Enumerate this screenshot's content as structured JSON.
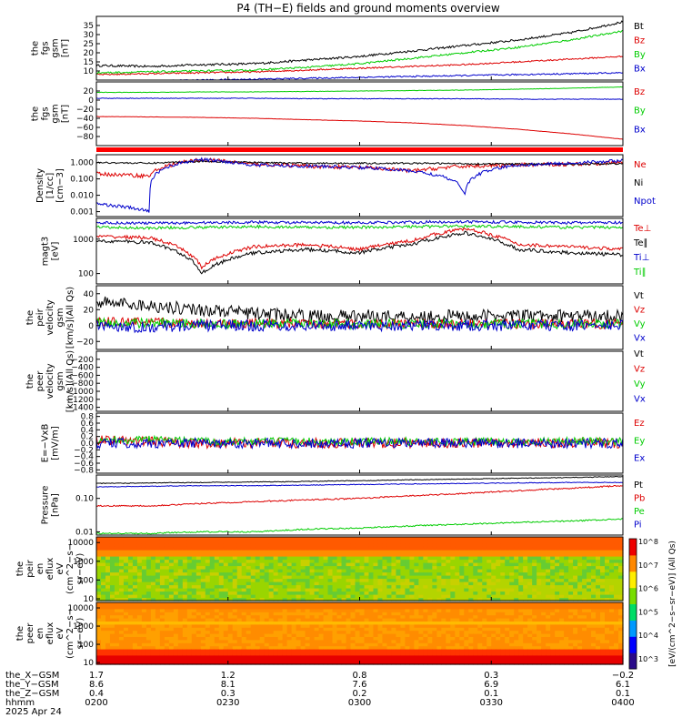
{
  "chart_data": {
    "type": "line",
    "title": "P4 (TH−E) fields and ground moments overview",
    "x_ticks": [
      "0200",
      "0230",
      "0300",
      "0330",
      "0400"
    ],
    "orbit": {
      "rows": [
        {
          "label": "the_X−GSM",
          "values": [
            "1.7",
            "1.2",
            "0.8",
            "0.3",
            "−0.2"
          ]
        },
        {
          "label": "the_Y−GSM",
          "values": [
            "8.6",
            "8.1",
            "7.6",
            "6.9",
            "6.1"
          ]
        },
        {
          "label": "the_Z−GSM",
          "values": [
            "0.4",
            "0.3",
            "0.2",
            "0.1",
            "0.1"
          ]
        },
        {
          "label": "hhmm",
          "values": []
        },
        {
          "label": "2025 Apr 24",
          "values": []
        }
      ]
    },
    "colorbar": {
      "label": "[eV/(cm^2−s−sr−eV)] (All Qs)",
      "ticks": [
        "10^8",
        "10^7",
        "10^6",
        "10^5",
        "10^4",
        "10^3"
      ]
    },
    "panels": [
      {
        "id": "bt",
        "ylabel": [
          "the",
          "fgs",
          "gsm",
          "[nT]"
        ],
        "scale": "linear",
        "ylim": [
          5,
          40
        ],
        "ticks": [
          "35",
          "30",
          "25",
          "20",
          "15",
          "10"
        ],
        "tick_values": [
          35,
          30,
          25,
          20,
          15,
          10
        ],
        "series": [
          {
            "name": "Bt",
            "color": "#000000",
            "values": [
              13,
              12.5,
              13.5,
              14,
              16,
              18,
              21,
              24,
              27,
              31,
              37
            ],
            "noise": 0.6
          },
          {
            "name": "Bz",
            "color": "#dd0000",
            "values": [
              8,
              8.5,
              9,
              9.5,
              10.5,
              11.5,
              12.5,
              13.5,
              15,
              16.5,
              18
            ],
            "noise": 0.4
          },
          {
            "name": "By",
            "color": "#00cc00",
            "values": [
              9,
              9.5,
              10,
              10.5,
              12,
              14,
              17,
              20,
              23,
              27,
              32
            ],
            "noise": 0.5
          },
          {
            "name": "Bx",
            "color": "#0000cc",
            "values": [
              4,
              4.5,
              5,
              5.5,
              6,
              6.5,
              7,
              7.5,
              8,
              8.5,
              9
            ],
            "noise": 0.4
          }
        ]
      },
      {
        "id": "b_gsm",
        "ylabel": [
          "the",
          "fgs",
          "gsm",
          "[nT]"
        ],
        "scale": "linear",
        "ylim": [
          -100,
          40
        ],
        "ticks": [
          "20",
          "0",
          "−20",
          "−40",
          "−60",
          "−80"
        ],
        "tick_values": [
          20,
          0,
          -20,
          -40,
          -60,
          -80
        ],
        "series": [
          {
            "name": "Bz",
            "color": "#dd0000",
            "values": [
              -36,
              -37,
              -38,
              -40,
              -43,
              -46,
              -50,
              -56,
              -64,
              -74,
              -86
            ],
            "noise": 0.3
          },
          {
            "name": "By",
            "color": "#00cc00",
            "values": [
              17,
              17,
              18,
              18,
              19,
              20,
              21,
              22,
              24,
              26,
              29
            ],
            "noise": 0.4
          },
          {
            "name": "Bx",
            "color": "#0000cc",
            "values": [
              4,
              4,
              4,
              4,
              3,
              3,
              3,
              3,
              2,
              2,
              2
            ],
            "noise": 0.6
          }
        ]
      },
      {
        "id": "density",
        "ylabel": [
          "Density",
          "[1/cc]",
          "[cm−3]"
        ],
        "scale": "log",
        "ylim": [
          0.0005,
          3
        ],
        "ticks": [
          "1.000",
          "0.100",
          "0.010",
          "0.001"
        ],
        "tick_values": [
          1,
          0.1,
          0.01,
          0.001
        ],
        "series": [
          {
            "name": "Ne",
            "color": "#dd0000",
            "values": [
              0.2,
              0.15,
              1.5,
              0.8,
              0.6,
              0.5,
              0.3,
              0.6,
              0.7,
              0.8,
              1.0
            ],
            "noise": 0.12
          },
          {
            "name": "Ni",
            "color": "#000000",
            "values": [
              1,
              0.9,
              1.2,
              1.0,
              0.9,
              0.9,
              0.9,
              0.85,
              0.8,
              0.8,
              0.85
            ],
            "noise": 0.05
          },
          {
            "name": "Npot",
            "color": "#0000cc",
            "values": [
              0.003,
              0.001,
              1.5,
              0.7,
              0.6,
              0.5,
              0.3,
              0.01,
              0.7,
              0.9,
              1.3
            ],
            "noise": 0.1
          }
        ]
      },
      {
        "id": "temp",
        "ylabel": [
          "magt3",
          "[eV]"
        ],
        "scale": "log",
        "ylim": [
          50,
          4000
        ],
        "ticks": [
          "1000",
          "100"
        ],
        "tick_values": [
          1000,
          100
        ],
        "series": [
          {
            "name": "Te⊥",
            "color": "#dd0000",
            "values": [
              1200,
              1100,
              150,
              600,
              700,
              500,
              900,
              2000,
              700,
              600,
              500
            ],
            "noise": 0.05
          },
          {
            "name": "Te∥",
            "color": "#000000",
            "values": [
              900,
              800,
              100,
              400,
              500,
              400,
              700,
              1500,
              500,
              400,
              350
            ],
            "noise": 0.05
          },
          {
            "name": "Ti⊥",
            "color": "#0000cc",
            "values": [
              3000,
              2900,
              3000,
              3100,
              3000,
              3000,
              3100,
              3200,
              3100,
              3000,
              3000
            ],
            "noise": 0.04
          },
          {
            "name": "Ti∥",
            "color": "#00cc00",
            "values": [
              2200,
              2100,
              2200,
              2300,
              2200,
              2200,
              2300,
              2400,
              2300,
              2200,
              2200
            ],
            "noise": 0.04
          }
        ]
      },
      {
        "id": "v_peir",
        "ylabel": [
          "the",
          "peir",
          "velocity",
          "gsm",
          "[km/s](All Qs)"
        ],
        "scale": "linear",
        "ylim": [
          -30,
          50
        ],
        "ticks": [
          "40",
          "20",
          "0",
          "−20"
        ],
        "tick_values": [
          40,
          20,
          0,
          -20
        ],
        "series": [
          {
            "name": "Vt",
            "color": "#000000",
            "values": [
              30,
              25,
              20,
              15,
              12,
              12,
              12,
              12,
              12,
              12,
              12
            ],
            "noise": 8
          },
          {
            "name": "Vz",
            "color": "#dd0000",
            "values": [
              5,
              4,
              3,
              3,
              2,
              2,
              2,
              2,
              2,
              2,
              2
            ],
            "noise": 6
          },
          {
            "name": "Vy",
            "color": "#00cc00",
            "values": [
              3,
              3,
              2,
              2,
              2,
              2,
              2,
              2,
              2,
              2,
              2
            ],
            "noise": 6
          },
          {
            "name": "Vx",
            "color": "#0000cc",
            "values": [
              0,
              -2,
              0,
              0,
              0,
              0,
              0,
              0,
              0,
              0,
              0
            ],
            "noise": 7
          }
        ]
      },
      {
        "id": "v_peer",
        "ylabel": [
          "the",
          "peer",
          "velocity",
          "gsm",
          "[km/s](All Qs)"
        ],
        "scale": "linear",
        "ylim": [
          -1500,
          0
        ],
        "ticks": [
          "−200",
          "−400",
          "−600",
          "−800",
          "−1000",
          "−1200",
          "−1400"
        ],
        "tick_values": [
          -200,
          -400,
          -600,
          -800,
          -1000,
          -1200,
          -1400
        ],
        "series": [],
        "legend": [
          "Vt",
          "Vz",
          "Vy",
          "Vx"
        ],
        "legend_colors": [
          "#000000",
          "#dd0000",
          "#00cc00",
          "#0000cc"
        ]
      },
      {
        "id": "efield",
        "ylabel": [
          "E=−VxB",
          "[mV/m]"
        ],
        "scale": "linear",
        "ylim": [
          -0.9,
          0.9
        ],
        "ticks": [
          "0.8",
          "0.6",
          "0.4",
          "0.2",
          "0.0",
          "−0.2",
          "−0.4",
          "−0.6",
          "−0.8"
        ],
        "tick_values": [
          0.8,
          0.6,
          0.4,
          0.2,
          0,
          -0.2,
          -0.4,
          -0.6,
          -0.8
        ],
        "series": [
          {
            "name": "Ez",
            "color": "#dd0000",
            "values": [
              0.1,
              0.05,
              0,
              0,
              0,
              0,
              0,
              0,
              0,
              0,
              0
            ],
            "noise": 0.15
          },
          {
            "name": "Ey",
            "color": "#00cc00",
            "values": [
              0.1,
              0.1,
              0.05,
              0.05,
              0.05,
              0.05,
              0.05,
              0.05,
              0.05,
              0.05,
              0.05
            ],
            "noise": 0.12
          },
          {
            "name": "Ex",
            "color": "#0000cc",
            "values": [
              0,
              0,
              0,
              0,
              0,
              0,
              0,
              0,
              0,
              0,
              0
            ],
            "noise": 0.15
          }
        ]
      },
      {
        "id": "pressure",
        "ylabel": [
          "Pressure",
          "[nPa]"
        ],
        "scale": "log",
        "ylim": [
          0.008,
          0.5
        ],
        "ticks": [
          "0.10",
          "0.01"
        ],
        "tick_values": [
          0.1,
          0.01
        ],
        "series": [
          {
            "name": "Pt",
            "color": "#000000",
            "values": [
              0.28,
              0.29,
              0.3,
              0.31,
              0.32,
              0.34,
              0.36,
              0.38,
              0.4,
              0.42,
              0.45
            ],
            "noise": 0.01
          },
          {
            "name": "Pb",
            "color": "#dd0000",
            "values": [
              0.06,
              0.06,
              0.07,
              0.08,
              0.09,
              0.1,
              0.12,
              0.14,
              0.17,
              0.2,
              0.24
            ],
            "noise": 0.02
          },
          {
            "name": "Pe",
            "color": "#00cc00",
            "values": [
              0.009,
              0.009,
              0.01,
              0.01,
              0.012,
              0.013,
              0.015,
              0.017,
              0.019,
              0.021,
              0.024
            ],
            "noise": 0.02
          },
          {
            "name": "Pi",
            "color": "#0000cc",
            "values": [
              0.22,
              0.23,
              0.24,
              0.24,
              0.25,
              0.26,
              0.27,
              0.28,
              0.29,
              0.3,
              0.3
            ],
            "noise": 0.01
          }
        ]
      },
      {
        "id": "peir_spec",
        "ylabel": [
          "the",
          "peir",
          "en",
          "eflux",
          "eV",
          "(cm^2−s−",
          "sr−eV)"
        ],
        "scale": "log",
        "ylim": [
          8,
          20000
        ],
        "ticks": [
          "10000",
          "1000",
          "100",
          "10"
        ],
        "tick_values": [
          10000,
          1000,
          100,
          10
        ],
        "spectrogram": "ion"
      },
      {
        "id": "peer_spec",
        "ylabel": [
          "the",
          "peer",
          "en",
          "eflux",
          "eV",
          "(cm^2−s−",
          "sr−eV)"
        ],
        "scale": "log",
        "ylim": [
          8,
          20000
        ],
        "ticks": [
          "10000",
          "1000",
          "100",
          "10"
        ],
        "tick_values": [
          10000,
          1000,
          100,
          10
        ],
        "spectrogram": "electron"
      }
    ]
  }
}
